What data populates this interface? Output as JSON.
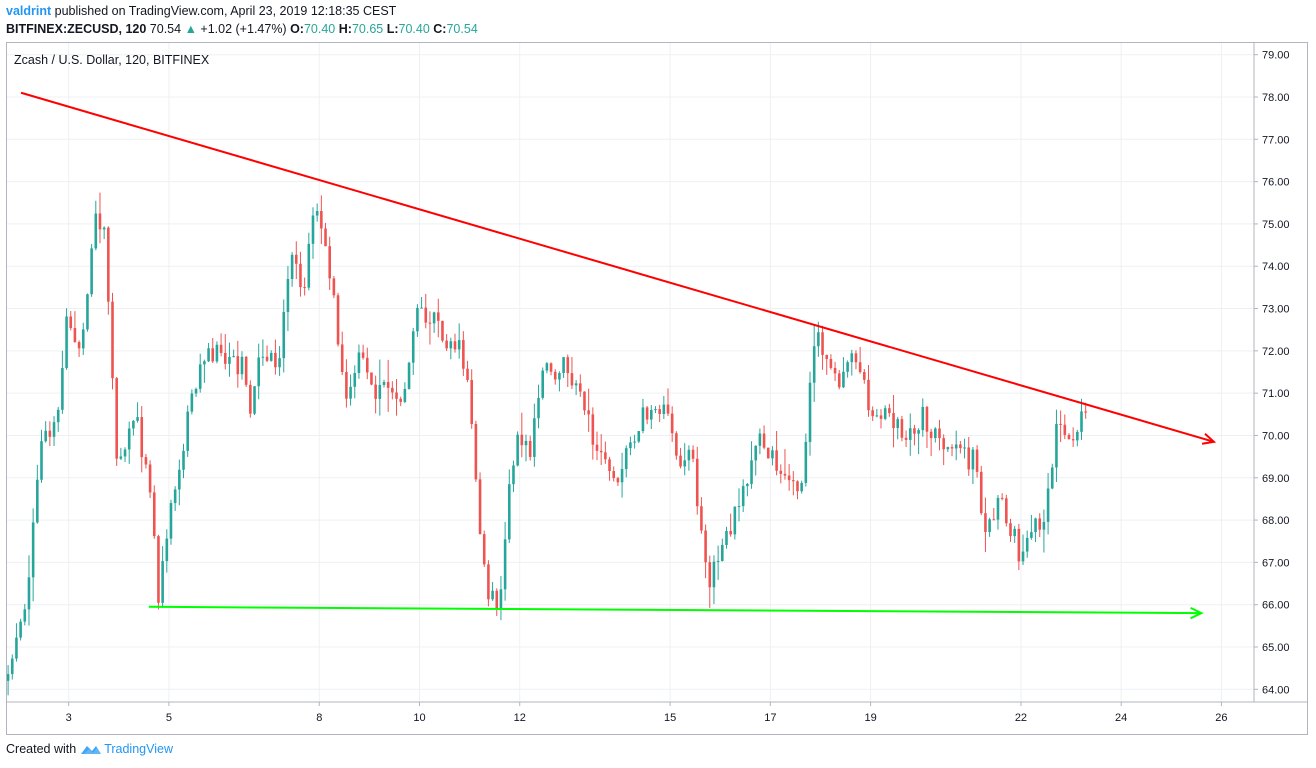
{
  "header": {
    "user": "valdrint",
    "published_text": " published on TradingView.com, April 23, 2019 12:18:35 CEST",
    "symbol": "BITFINEX:ZECUSD, 120",
    "last": "70.54",
    "change_arrow": "▲",
    "change": "+1.02 (+1.47%)",
    "o_label": "O:",
    "o_value": "70.40",
    "h_label": "H:",
    "h_value": "70.65",
    "l_label": "L:",
    "l_value": "70.40",
    "c_label": "C:",
    "c_value": "70.54"
  },
  "chart_title": "Zcash / U.S. Dollar, 120, BITFINEX",
  "footer": {
    "created_with": "Created with",
    "brand": "TradingView"
  },
  "colors": {
    "up": "#26a69a",
    "down": "#ef5350",
    "resistance_line": "#ff0000",
    "support_line": "#00ff00",
    "grid": "#eef0f3",
    "axis": "#b2b5be",
    "text": "#131722",
    "link": "#2196f3"
  },
  "chart_data": {
    "type": "candlestick",
    "title": "Zcash / U.S. Dollar, 120, BITFINEX",
    "x_axis": {
      "unit": "day of April 2019",
      "range": [
        1.75,
        26.65
      ],
      "ticks": [
        3,
        5,
        8,
        10,
        12,
        15,
        17,
        19,
        22,
        24,
        26
      ],
      "tick_labels": [
        "3",
        "5",
        "8",
        "10",
        "12",
        "15",
        "17",
        "19",
        "22",
        "24",
        "26"
      ]
    },
    "y_axis": {
      "position": "right",
      "range": [
        63.7,
        79.3
      ],
      "ticks": [
        64,
        65,
        66,
        67,
        68,
        69,
        70,
        71,
        72,
        73,
        74,
        75,
        76,
        77,
        78,
        79
      ],
      "tick_labels": [
        "64.00",
        "65.00",
        "66.00",
        "67.00",
        "68.00",
        "69.00",
        "70.00",
        "71.00",
        "72.00",
        "73.00",
        "74.00",
        "75.00",
        "76.00",
        "77.00",
        "78.00",
        "79.00"
      ]
    },
    "grid": true,
    "candle_interval_hours": 2,
    "start_day": 1.75,
    "seed": 20190423,
    "path_waypoints": [
      [
        1.75,
        64.2
      ],
      [
        2.2,
        66.3
      ],
      [
        2.5,
        69.8
      ],
      [
        2.8,
        70.3
      ],
      [
        3.0,
        72.6
      ],
      [
        3.3,
        72.0
      ],
      [
        3.55,
        75.2
      ],
      [
        3.75,
        75.0
      ],
      [
        4.0,
        69.2
      ],
      [
        4.4,
        70.4
      ],
      [
        4.7,
        68.2
      ],
      [
        4.85,
        66.0
      ],
      [
        5.05,
        68.3
      ],
      [
        5.35,
        70.0
      ],
      [
        5.7,
        71.7
      ],
      [
        6.1,
        72.0
      ],
      [
        6.5,
        71.6
      ],
      [
        6.7,
        70.6
      ],
      [
        6.9,
        72.1
      ],
      [
        7.2,
        71.5
      ],
      [
        7.5,
        74.2
      ],
      [
        7.7,
        73.3
      ],
      [
        7.95,
        75.3
      ],
      [
        8.2,
        74.3
      ],
      [
        8.4,
        72.5
      ],
      [
        8.6,
        71.0
      ],
      [
        8.9,
        72.1
      ],
      [
        9.15,
        71.0
      ],
      [
        9.4,
        71.3
      ],
      [
        9.7,
        70.7
      ],
      [
        10.0,
        72.8
      ],
      [
        10.3,
        72.7
      ],
      [
        10.6,
        72.3
      ],
      [
        10.8,
        72.1
      ],
      [
        11.05,
        71.2
      ],
      [
        11.2,
        68.0
      ],
      [
        11.45,
        66.0
      ],
      [
        11.7,
        66.3
      ],
      [
        11.8,
        68.4
      ],
      [
        12.0,
        70.2
      ],
      [
        12.25,
        69.7
      ],
      [
        12.5,
        71.4
      ],
      [
        12.9,
        71.7
      ],
      [
        13.15,
        71.3
      ],
      [
        13.5,
        70.0
      ],
      [
        14.0,
        69.1
      ],
      [
        14.5,
        70.4
      ],
      [
        14.7,
        70.7
      ],
      [
        14.9,
        70.6
      ],
      [
        15.25,
        69.4
      ],
      [
        15.45,
        69.8
      ],
      [
        15.6,
        68.0
      ],
      [
        15.8,
        66.5
      ],
      [
        16.1,
        67.4
      ],
      [
        16.45,
        68.5
      ],
      [
        16.8,
        69.8
      ],
      [
        17.1,
        69.6
      ],
      [
        17.3,
        68.8
      ],
      [
        17.45,
        68.9
      ],
      [
        17.7,
        69.0
      ],
      [
        17.85,
        71.6
      ],
      [
        18.0,
        72.3
      ],
      [
        18.4,
        71.1
      ],
      [
        18.6,
        71.9
      ],
      [
        18.9,
        71.2
      ],
      [
        19.05,
        70.7
      ],
      [
        19.3,
        70.5
      ],
      [
        19.6,
        70.1
      ],
      [
        19.9,
        70.0
      ],
      [
        20.1,
        70.5
      ],
      [
        20.5,
        69.6
      ],
      [
        20.8,
        69.6
      ],
      [
        21.1,
        69.4
      ],
      [
        21.35,
        67.6
      ],
      [
        21.55,
        68.5
      ],
      [
        21.8,
        68.0
      ],
      [
        22.05,
        67.0
      ],
      [
        22.3,
        67.8
      ],
      [
        22.55,
        68.3
      ],
      [
        22.75,
        70.3
      ],
      [
        23.0,
        69.8
      ],
      [
        23.3,
        70.5
      ]
    ],
    "annotations": [
      {
        "type": "trend_line",
        "name": "descending-resistance",
        "points": [
          [
            2.05,
            78.1
          ],
          [
            25.85,
            69.85
          ]
        ],
        "arrow_end": true,
        "color": "#ff0000"
      },
      {
        "type": "trend_line",
        "name": "horizontal-support",
        "points": [
          [
            4.6,
            65.95
          ],
          [
            25.6,
            65.8
          ]
        ],
        "arrow_end": true,
        "color": "#00ff00"
      }
    ]
  }
}
